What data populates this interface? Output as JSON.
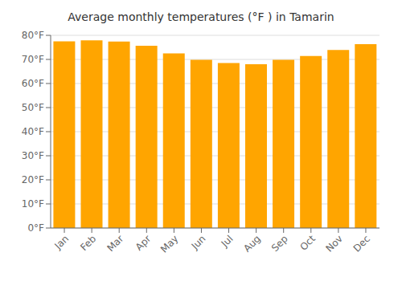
{
  "chart_data": {
    "type": "bar",
    "title": "Average monthly temperatures (°F ) in Tamarin",
    "categories": [
      "Jan",
      "Feb",
      "Mar",
      "Apr",
      "May",
      "Jun",
      "Jul",
      "Aug",
      "Sep",
      "Oct",
      "Nov",
      "Dec"
    ],
    "values": [
      77.5,
      77.9,
      77.4,
      75.7,
      72.5,
      69.8,
      68.5,
      68.0,
      69.8,
      71.4,
      73.9,
      76.3
    ],
    "color": "#FFA500",
    "ylim": [
      0,
      80
    ],
    "yticks": [
      {
        "value": 0,
        "label": "0°F"
      },
      {
        "value": 10,
        "label": "10°F"
      },
      {
        "value": 20,
        "label": "20°F"
      },
      {
        "value": 30,
        "label": "30°F"
      },
      {
        "value": 40,
        "label": "40°F"
      },
      {
        "value": 50,
        "label": "50°F"
      },
      {
        "value": 60,
        "label": "60°F"
      },
      {
        "value": 70,
        "label": "70°F"
      },
      {
        "value": 80,
        "label": "80°F"
      }
    ],
    "grid": true
  }
}
